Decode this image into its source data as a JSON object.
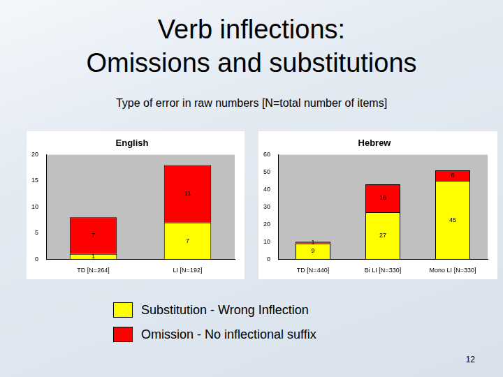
{
  "slide": {
    "title": [
      "Verb inflections:",
      "Omissions and substitutions"
    ],
    "subtitle": "Type of error in raw numbers [N=total number of items]",
    "page_number": 12
  },
  "chart_data": [
    {
      "type": "bar",
      "title": "English",
      "categories": [
        "TD [N=264]",
        "LI [N=192]"
      ],
      "series": [
        {
          "name": "Substitution - Wrong Inflection",
          "color": "#ffff00",
          "values": [
            1,
            7
          ]
        },
        {
          "name": "Omission - No inflectional suffix",
          "color": "#ff0000",
          "values": [
            7,
            11
          ]
        }
      ],
      "ylim": [
        0,
        20
      ],
      "yticks": [
        0,
        5,
        10,
        15,
        20
      ],
      "stacked": true,
      "data_labels": true,
      "grid": false
    },
    {
      "type": "bar",
      "title": "Hebrew",
      "categories": [
        "TD [N=440]",
        "Bi LI [N=330]",
        "Mono LI [N=330]"
      ],
      "series": [
        {
          "name": "Substitution - Wrong Inflection",
          "color": "#ffff00",
          "values": [
            9,
            27,
            45
          ]
        },
        {
          "name": "Omission - No inflectional suffix",
          "color": "#ff0000",
          "values": [
            1,
            16,
            6
          ]
        }
      ],
      "ylim": [
        0,
        60
      ],
      "yticks": [
        0,
        10,
        20,
        30,
        40,
        50,
        60
      ],
      "stacked": true,
      "data_labels": true,
      "grid": false
    }
  ]
}
